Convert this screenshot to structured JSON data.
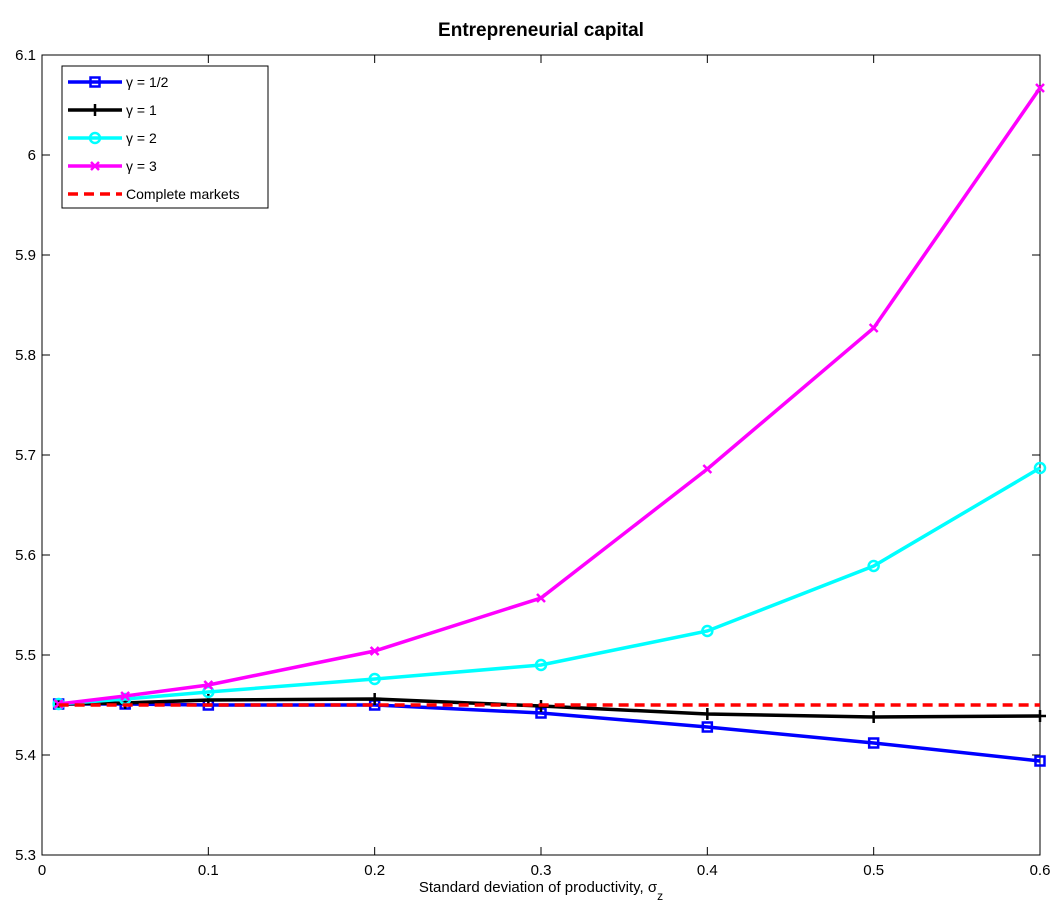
{
  "chart_data": {
    "type": "line",
    "title": "Entrepreneurial capital",
    "xlabel": "Standard deviation of productivity, σ",
    "xlabel_sub": "z",
    "x": [
      0.01,
      0.05,
      0.1,
      0.2,
      0.3,
      0.4,
      0.5,
      0.6
    ],
    "series": [
      {
        "name": "γ = 1/2",
        "color": "#0000ff",
        "marker": "square",
        "dash": false,
        "values": [
          5.451,
          5.451,
          5.45,
          5.45,
          5.442,
          5.428,
          5.412,
          5.394
        ]
      },
      {
        "name": "γ = 1",
        "color": "#000000",
        "marker": "plus",
        "dash": false,
        "values": [
          5.451,
          5.452,
          5.455,
          5.456,
          5.449,
          5.441,
          5.438,
          5.439
        ]
      },
      {
        "name": "γ = 2",
        "color": "#00ffff",
        "marker": "circle",
        "dash": false,
        "values": [
          5.451,
          5.456,
          5.463,
          5.476,
          5.49,
          5.524,
          5.589,
          5.687
        ]
      },
      {
        "name": "γ = 3",
        "color": "#ff00ff",
        "marker": "x",
        "dash": false,
        "values": [
          5.451,
          5.459,
          5.47,
          5.504,
          5.557,
          5.686,
          5.827,
          6.067
        ]
      },
      {
        "name": "Complete markets",
        "color": "#ff0000",
        "marker": "none",
        "dash": true,
        "values": [
          5.45,
          5.45,
          5.45,
          5.45,
          5.45,
          5.45,
          5.45,
          5.45
        ]
      }
    ],
    "xlim": [
      0,
      0.6
    ],
    "xticks": [
      0,
      0.1,
      0.2,
      0.3,
      0.4,
      0.5,
      0.6
    ],
    "ylim": [
      5.3,
      6.1
    ],
    "yticks": [
      5.3,
      5.4,
      5.5,
      5.6,
      5.7,
      5.8,
      5.9,
      6,
      6.1
    ],
    "grid": false,
    "legend": "upper-left"
  }
}
